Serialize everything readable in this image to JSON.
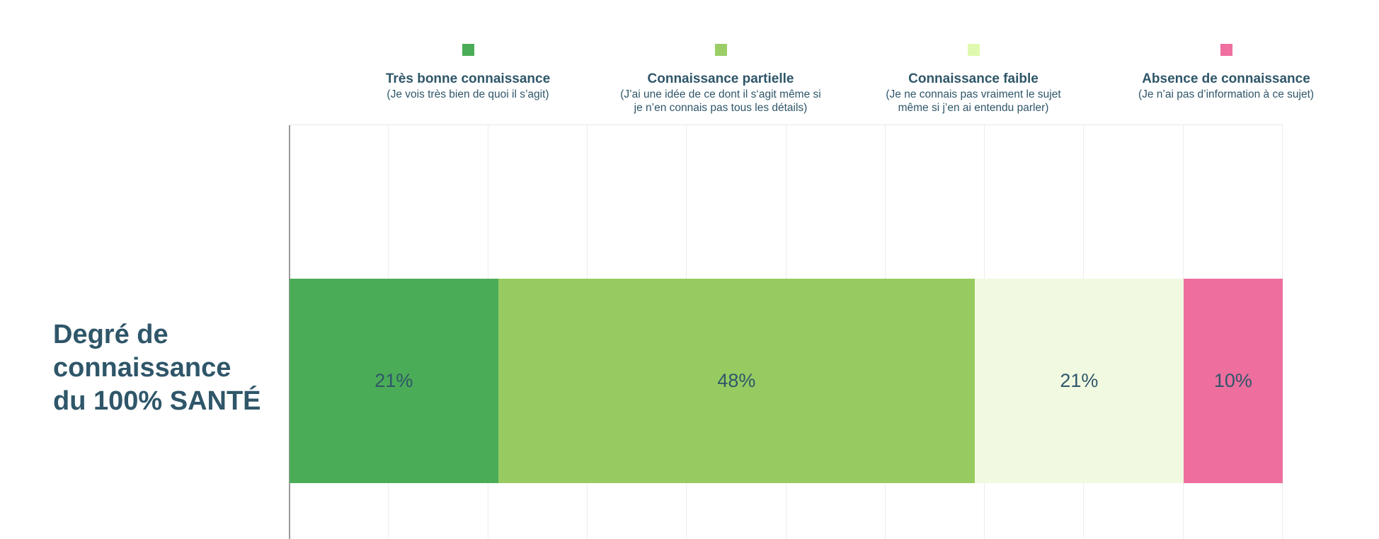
{
  "page": {
    "background_color": "#ffffff",
    "text_color": "#2f5669"
  },
  "axis": {
    "y_axis_line_color": "#9a9a9a",
    "gridline_color": "#ececec",
    "plot_top_border_color": "#e8e8e8"
  },
  "category": {
    "label": "Degré de connaissance du 100% SANTÉ",
    "lines": [
      "Degré de",
      "connaissance",
      "du 100% SANTÉ"
    ]
  },
  "chart_data": {
    "type": "bar",
    "orientation": "horizontal",
    "stacked": true,
    "title": "",
    "categories": [
      "Degré de connaissance du 100% SANTÉ"
    ],
    "series": [
      {
        "name": "Très bonne connaissance",
        "description": "(Je vois très bien de quoi il s’agit)",
        "description_lines": [
          "(Je vois très bien de quoi il s’agit)",
          ""
        ],
        "value": 21,
        "label": "21%",
        "color": "#4bac57",
        "legend_swatch_color": "#4bac57"
      },
      {
        "name": "Connaissance partielle",
        "description": "(J’ai une idée de ce dont il s‘agit même si je n’en connais pas tous les détails)",
        "description_lines": [
          "(J’ai une idée de ce dont il s‘agit même si",
          "je n’en connais pas tous les détails)"
        ],
        "value": 48,
        "label": "48%",
        "color": "#97cb62",
        "legend_swatch_color": "#9bce67"
      },
      {
        "name": "Connaissance faible",
        "description": "(Je ne connais pas vraiment le sujet même si j’en ai entendu parler)",
        "description_lines": [
          "(Je ne connais pas vraiment le sujet",
          "même si j’en ai entendu parler)"
        ],
        "value": 21,
        "label": "21%",
        "color": "#f1fae1",
        "legend_swatch_color": "#dffaae"
      },
      {
        "name": "Absence de connaissance",
        "description": "(Je n’ai pas d’information à ce sujet)",
        "description_lines": [
          "(Je n’ai pas d’information à ce sujet)",
          ""
        ],
        "value": 10,
        "label": "10%",
        "color": "#ee6e9e",
        "legend_swatch_color": "#ee6fa0"
      }
    ],
    "xlim": [
      0,
      100
    ],
    "gridline_step": 10,
    "grid": true,
    "legend_position": "top",
    "data_labels": "inside-center"
  }
}
